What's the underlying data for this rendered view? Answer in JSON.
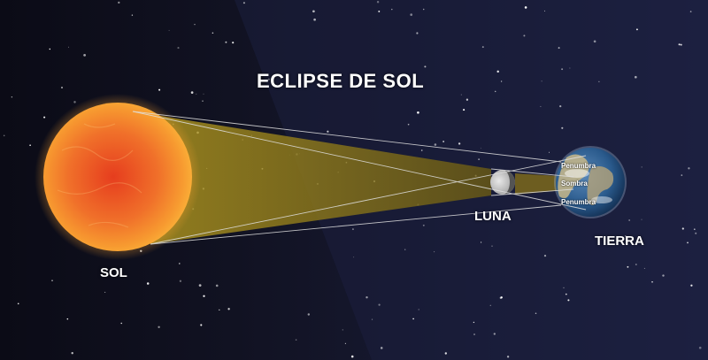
{
  "title": "ECLIPSE DE SOL",
  "bodies": {
    "sun": "SOL",
    "moon": "LUNA",
    "earth": "TIERRA"
  },
  "earth_zones": {
    "upper": "Penumbra",
    "center": "Sombra",
    "lower": "Penumbra"
  },
  "colors": {
    "space_left": "#0c0c18",
    "space_right": "#1c2040",
    "sun_core": "#ec4a22",
    "sun_edge": "#f8a52e",
    "cone": "#caa628",
    "earth_ocean": "#1a4f8a",
    "text": "#ffffff"
  }
}
